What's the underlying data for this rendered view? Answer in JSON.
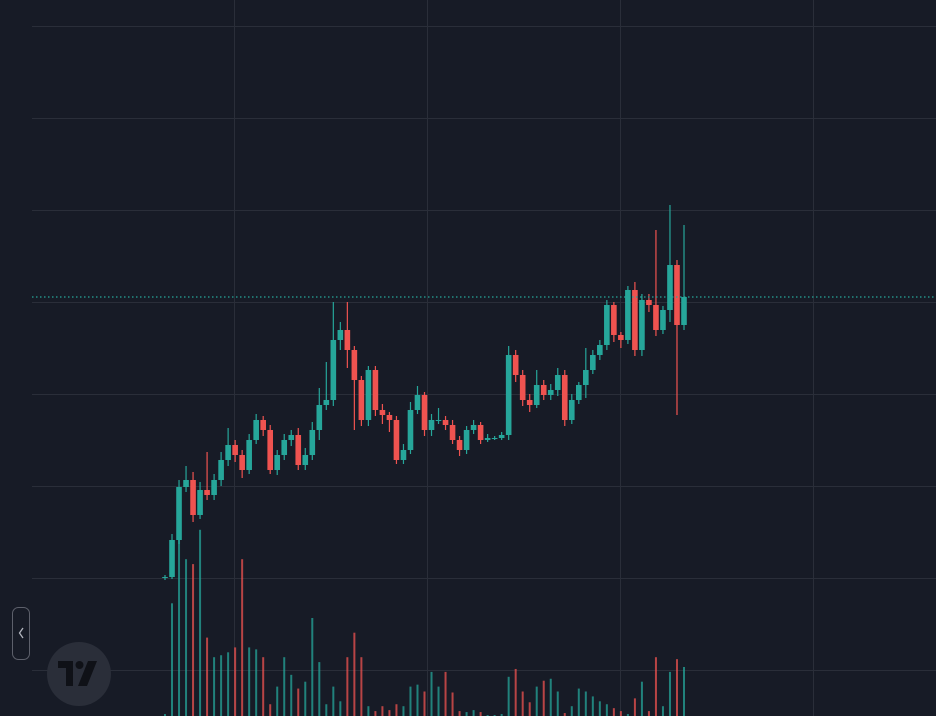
{
  "chart_data": {
    "type": "candlestick",
    "ylim": [
      46,
      762
    ],
    "yticks": [
      92,
      184,
      276,
      368,
      460,
      552,
      644,
      736
    ],
    "grid": true,
    "tick_labels": false,
    "up_color": "#26a69a",
    "down_color": "#ef5350",
    "last_price_line": true,
    "vol_lim": [
      0,
      200
    ],
    "open": [
      184,
      185,
      222,
      275,
      282,
      247,
      272,
      267,
      282,
      302,
      317,
      307,
      292,
      322,
      342,
      332,
      292,
      307,
      322,
      327,
      297,
      307,
      332,
      357,
      362,
      422,
      432,
      412,
      382,
      342,
      392,
      352,
      347,
      342,
      302,
      312,
      352,
      367,
      332,
      342,
      342,
      337,
      322,
      312,
      332,
      337,
      322,
      324,
      324,
      327,
      407,
      387,
      362,
      357,
      377,
      367,
      372,
      387,
      342,
      362,
      377,
      392,
      407,
      417,
      457,
      427,
      422,
      472,
      412,
      462,
      457,
      432,
      452,
      497,
      437
    ],
    "high": [
      187,
      228,
      282,
      296,
      290,
      280,
      310,
      288,
      310,
      334,
      322,
      312,
      328,
      348,
      346,
      337,
      312,
      328,
      332,
      334,
      314,
      340,
      374,
      400,
      460,
      440,
      460,
      416,
      386,
      396,
      396,
      358,
      350,
      346,
      318,
      360,
      376,
      370,
      348,
      354,
      346,
      342,
      326,
      336,
      342,
      340,
      328,
      326,
      330,
      416,
      412,
      392,
      368,
      392,
      382,
      378,
      394,
      392,
      368,
      380,
      414,
      412,
      422,
      462,
      460,
      430,
      476,
      480,
      468,
      468,
      532,
      456,
      557,
      502,
      537
    ],
    "low": [
      182,
      183,
      218,
      270,
      240,
      243,
      262,
      262,
      276,
      296,
      300,
      284,
      288,
      318,
      326,
      288,
      287,
      302,
      316,
      292,
      292,
      302,
      322,
      352,
      356,
      412,
      394,
      332,
      336,
      336,
      346,
      338,
      330,
      298,
      298,
      308,
      348,
      326,
      326,
      338,
      332,
      318,
      306,
      308,
      328,
      318,
      320,
      322,
      322,
      322,
      380,
      356,
      350,
      354,
      362,
      362,
      366,
      336,
      338,
      358,
      364,
      388,
      402,
      412,
      420,
      414,
      418,
      406,
      406,
      450,
      426,
      428,
      440,
      347,
      432
    ],
    "close": [
      185,
      222,
      275,
      282,
      247,
      272,
      267,
      282,
      302,
      317,
      307,
      292,
      322,
      342,
      332,
      292,
      307,
      322,
      327,
      297,
      307,
      332,
      357,
      362,
      422,
      432,
      412,
      382,
      342,
      392,
      352,
      347,
      342,
      302,
      312,
      352,
      367,
      332,
      342,
      342,
      337,
      322,
      312,
      332,
      337,
      322,
      324,
      324,
      327,
      407,
      387,
      362,
      357,
      377,
      367,
      372,
      387,
      342,
      362,
      377,
      392,
      407,
      417,
      457,
      427,
      422,
      472,
      412,
      462,
      457,
      432,
      452,
      497,
      437,
      465
    ],
    "volume": [
      2,
      115,
      180,
      160,
      155,
      190,
      80,
      60,
      62,
      65,
      70,
      160,
      70,
      68,
      60,
      12,
      30,
      60,
      42,
      28,
      35,
      100,
      55,
      12,
      30,
      15,
      60,
      85,
      60,
      10,
      5,
      10,
      6,
      12,
      10,
      30,
      32,
      25,
      45,
      30,
      45,
      24,
      5,
      4,
      6,
      4,
      1,
      1,
      2,
      40,
      48,
      25,
      14,
      30,
      36,
      38,
      25,
      3,
      10,
      28,
      25,
      20,
      15,
      12,
      8,
      5,
      2,
      18,
      35,
      5,
      60,
      10,
      45,
      58,
      50
    ]
  }
}
